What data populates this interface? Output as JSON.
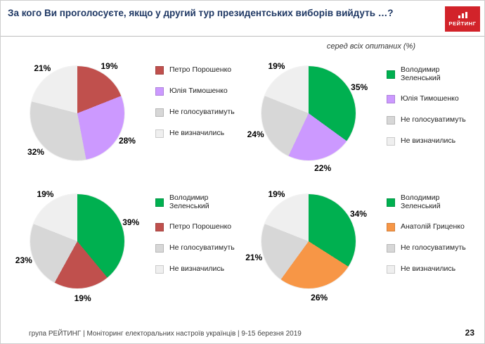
{
  "header": {
    "title": "За кого Ви проголосуєте, якщо у другий тур президентських виборів вийдуть …?",
    "subtitle": "серед всіх опитаних (%)",
    "logo": "РЕЙТИНГ"
  },
  "footer": {
    "text": "група РЕЙТИНГ | Моніторинг електоральних настроїв українців | 9-15 березня 2019",
    "page": "23"
  },
  "colors": {
    "poroshenko_red": "#C0504D",
    "tymoshenko_purple": "#CC99FF",
    "zelensky_green": "#00B050",
    "hrytsenko_orange": "#F79646",
    "wont_vote_gray": "#D7D7D7",
    "undecided_lightgray": "#EFEFEF",
    "logo_red": "#D2232A",
    "title_navy": "#1F3864"
  },
  "chart_data": [
    {
      "type": "pie",
      "title": "Порошенко vs Тимошенко",
      "series": [
        {
          "label": "Петро Порошенко",
          "value": 19,
          "color": "#C0504D"
        },
        {
          "label": "Юлія Тимошенко",
          "value": 28,
          "color": "#CC99FF"
        },
        {
          "label": "Не голосуватимуть",
          "value": 32,
          "color": "#D7D7D7"
        },
        {
          "label": "Не визначились",
          "value": 21,
          "color": "#EFEFEF"
        }
      ]
    },
    {
      "type": "pie",
      "title": "Зеленський vs Тимошенко",
      "series": [
        {
          "label": "Володимир Зеленський",
          "value": 35,
          "color": "#00B050"
        },
        {
          "label": "Юлія Тимошенко",
          "value": 22,
          "color": "#CC99FF"
        },
        {
          "label": "Не голосуватимуть",
          "value": 24,
          "color": "#D7D7D7"
        },
        {
          "label": "Не визначились",
          "value": 19,
          "color": "#EFEFEF"
        }
      ]
    },
    {
      "type": "pie",
      "title": "Зеленський vs Порошенко",
      "series": [
        {
          "label": "Володимир Зеленський",
          "value": 39,
          "color": "#00B050"
        },
        {
          "label": "Петро Порошенко",
          "value": 19,
          "color": "#C0504D"
        },
        {
          "label": "Не голосуватимуть",
          "value": 23,
          "color": "#D7D7D7"
        },
        {
          "label": "Не визначились",
          "value": 19,
          "color": "#EFEFEF"
        }
      ]
    },
    {
      "type": "pie",
      "title": "Зеленський vs Гриценко",
      "series": [
        {
          "label": "Володимир Зеленський",
          "value": 34,
          "color": "#00B050"
        },
        {
          "label": "Анатолій Гриценко",
          "value": 26,
          "color": "#F79646"
        },
        {
          "label": "Не голосуватимуть",
          "value": 21,
          "color": "#D7D7D7"
        },
        {
          "label": "Не визначились",
          "value": 19,
          "color": "#EFEFEF"
        }
      ]
    }
  ]
}
